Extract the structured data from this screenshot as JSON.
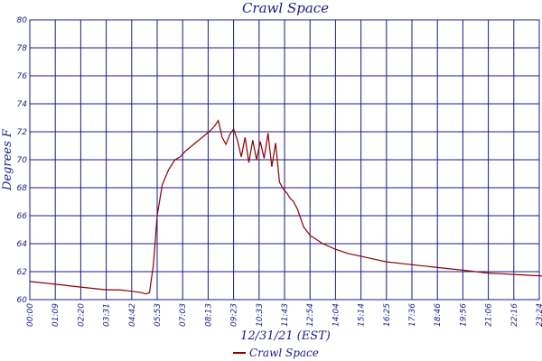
{
  "chart_data": {
    "type": "line",
    "title": "Crawl Space",
    "xlabel": "12/31/21 (EST)",
    "ylabel": "Degrees F",
    "ylim": [
      60,
      80
    ],
    "yticks": [
      60,
      62,
      64,
      66,
      68,
      70,
      72,
      74,
      76,
      78,
      80
    ],
    "xticks": [
      "00:00",
      "01:09",
      "02:20",
      "03:31",
      "04:42",
      "05:53",
      "07:03",
      "08:13",
      "09:23",
      "10:33",
      "11:43",
      "12:54",
      "14:04",
      "15:14",
      "16:25",
      "17:36",
      "18:46",
      "19:56",
      "21:06",
      "22:16",
      "23:24"
    ],
    "grid": true,
    "legend_position": "bottom-center",
    "series": [
      {
        "name": "Crawl Space",
        "color": "#8b0000",
        "x": [
          0,
          0.5,
          1,
          1.5,
          2,
          2.5,
          3,
          3.5,
          4,
          4.4,
          4.55,
          4.7,
          4.85,
          5.0,
          5.2,
          5.45,
          5.7,
          5.9,
          6.1,
          6.3,
          6.5,
          6.7,
          6.9,
          7.1,
          7.25,
          7.4,
          7.55,
          7.7,
          7.85,
          8.0,
          8.15,
          8.3,
          8.45,
          8.6,
          8.75,
          8.9,
          9.05,
          9.2,
          9.35,
          9.5,
          9.65,
          9.8,
          9.95,
          10.1,
          10.2,
          10.35,
          10.5,
          10.75,
          11.0,
          11.5,
          12.0,
          12.5,
          13.0,
          13.5,
          14.0,
          14.5,
          15.0,
          15.5,
          16.0,
          16.5,
          17.0,
          17.5,
          18.0,
          18.5,
          19.0,
          19.5,
          20.0,
          20.5,
          21.0,
          21.5,
          22.0,
          22.5,
          23.0,
          23.4
        ],
        "y": [
          61.3,
          61.2,
          61.1,
          61.0,
          60.9,
          60.8,
          60.7,
          60.7,
          60.6,
          60.5,
          60.4,
          60.5,
          62.5,
          66.0,
          68.2,
          69.3,
          70.0,
          70.2,
          70.6,
          70.9,
          71.2,
          71.5,
          71.8,
          72.1,
          72.4,
          72.8,
          71.6,
          71.1,
          71.8,
          72.2,
          71.4,
          70.2,
          71.6,
          69.8,
          71.4,
          70.0,
          71.3,
          70.1,
          71.9,
          69.5,
          71.2,
          68.4,
          67.9,
          67.6,
          67.3,
          67.0,
          66.5,
          65.2,
          64.6,
          64.0,
          63.6,
          63.3,
          63.1,
          62.9,
          62.7,
          62.6,
          62.5,
          62.4,
          62.3,
          62.2,
          62.1,
          62.0,
          61.9,
          61.85,
          61.8,
          61.75,
          61.7,
          61.65,
          61.6,
          61.55,
          61.5,
          61.45,
          61.4,
          61.35
        ]
      }
    ]
  }
}
